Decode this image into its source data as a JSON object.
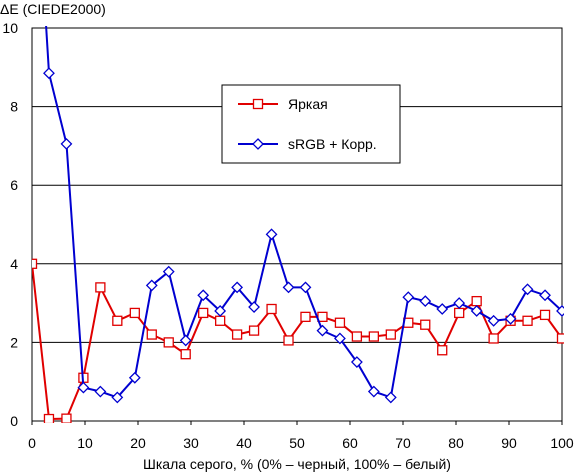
{
  "chart_data": {
    "type": "line",
    "title": "",
    "ylabel": "ΔE (CIEDE2000)",
    "xlabel": "Шкала серого, % (0% – черный, 100% – белый)",
    "xlim": [
      0,
      100
    ],
    "ylim": [
      0,
      10
    ],
    "xticks": [
      "0",
      "10",
      "20",
      "30",
      "40",
      "50",
      "60",
      "70",
      "80",
      "90",
      "100"
    ],
    "yticks": [
      "0",
      "2",
      "4",
      "6",
      "8",
      "10"
    ],
    "grid": "horizontal",
    "legend_position": "upper-center",
    "series": [
      {
        "name": "Яркая",
        "color": "#e00000",
        "marker": "square",
        "x": [
          0,
          3.2,
          6.5,
          9.7,
          12.9,
          16.1,
          19.4,
          22.6,
          25.8,
          29.0,
          32.3,
          35.5,
          38.7,
          41.9,
          45.2,
          48.4,
          51.6,
          54.8,
          58.1,
          61.3,
          64.5,
          67.7,
          71.0,
          74.2,
          77.4,
          80.6,
          83.9,
          87.1,
          90.3,
          93.5,
          96.8,
          100
        ],
        "y": [
          4.0,
          0.05,
          0.06,
          1.1,
          3.4,
          2.55,
          2.75,
          2.2,
          2.0,
          1.7,
          2.75,
          2.55,
          2.2,
          2.3,
          2.85,
          2.05,
          2.65,
          2.65,
          2.5,
          2.15,
          2.15,
          2.2,
          2.5,
          2.45,
          1.8,
          2.75,
          3.05,
          2.1,
          2.55,
          2.55,
          2.7,
          2.1
        ]
      },
      {
        "name": "sRGB + Корр.",
        "color": "#0000d0",
        "marker": "diamond",
        "x": [
          3.2,
          6.5,
          9.7,
          12.9,
          16.1,
          19.4,
          22.6,
          25.8,
          29.0,
          32.3,
          35.5,
          38.7,
          41.9,
          45.2,
          48.4,
          51.6,
          54.8,
          58.1,
          61.3,
          64.5,
          67.7,
          71.0,
          74.2,
          77.4,
          80.6,
          83.9,
          87.1,
          90.3,
          93.5,
          96.8,
          100
        ],
        "y": [
          8.85,
          7.05,
          0.85,
          0.75,
          0.6,
          1.1,
          3.45,
          3.8,
          2.05,
          3.2,
          2.8,
          3.4,
          2.9,
          4.75,
          3.4,
          3.4,
          2.3,
          2.1,
          1.5,
          0.75,
          0.6,
          3.15,
          3.05,
          2.85,
          3.0,
          2.8,
          2.55,
          2.6,
          3.35,
          3.2,
          2.8
        ]
      }
    ]
  }
}
